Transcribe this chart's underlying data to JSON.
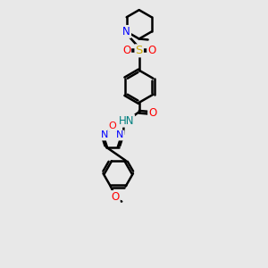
{
  "background_color": "#e8e8e8",
  "line_color": "#000000",
  "bond_width": 1.8,
  "atom_colors": {
    "N": "#0000ff",
    "O": "#ff0000",
    "S": "#ccaa00",
    "H": "#008080",
    "C": "#000000"
  },
  "font_size": 8.5,
  "fig_size": [
    3.0,
    3.0
  ],
  "dpi": 100
}
